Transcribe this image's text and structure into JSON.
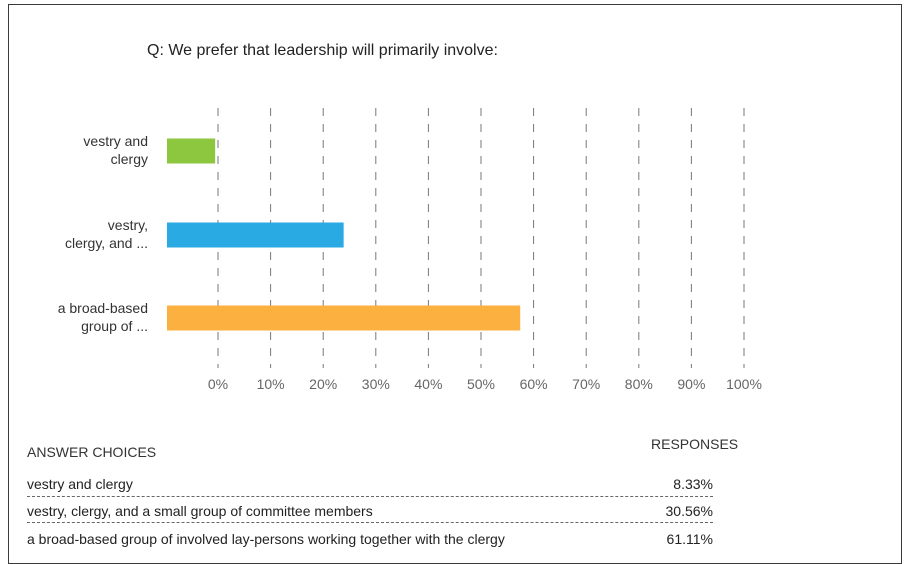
{
  "question": "Q: We prefer that leadership will primarily involve:",
  "chart_data": {
    "type": "bar",
    "orientation": "horizontal",
    "title": "Q: We prefer that leadership will primarily involve:",
    "categories": [
      [
        "vestry and",
        "clergy"
      ],
      [
        "vestry,",
        "clergy, and ..."
      ],
      [
        "a broad-based",
        "group of ..."
      ]
    ],
    "values": [
      8.33,
      30.56,
      61.11
    ],
    "colors": [
      "#8dc63f",
      "#29aae2",
      "#fbb040"
    ],
    "xlim": [
      0,
      100
    ],
    "xticks": [
      "0%",
      "10%",
      "20%",
      "30%",
      "40%",
      "50%",
      "60%",
      "70%",
      "80%",
      "90%",
      "100%"
    ],
    "grid": "vertical-dashed"
  },
  "table": {
    "header_choices": "ANSWER CHOICES",
    "header_responses": "RESPONSES",
    "rows": [
      {
        "choice": "vestry and clergy",
        "response": "8.33%"
      },
      {
        "choice": "vestry, clergy, and a small group of committee members",
        "response": "30.56%"
      },
      {
        "choice": "a broad-based group of involved lay-persons working together with the clergy",
        "response": "61.11%"
      }
    ]
  }
}
